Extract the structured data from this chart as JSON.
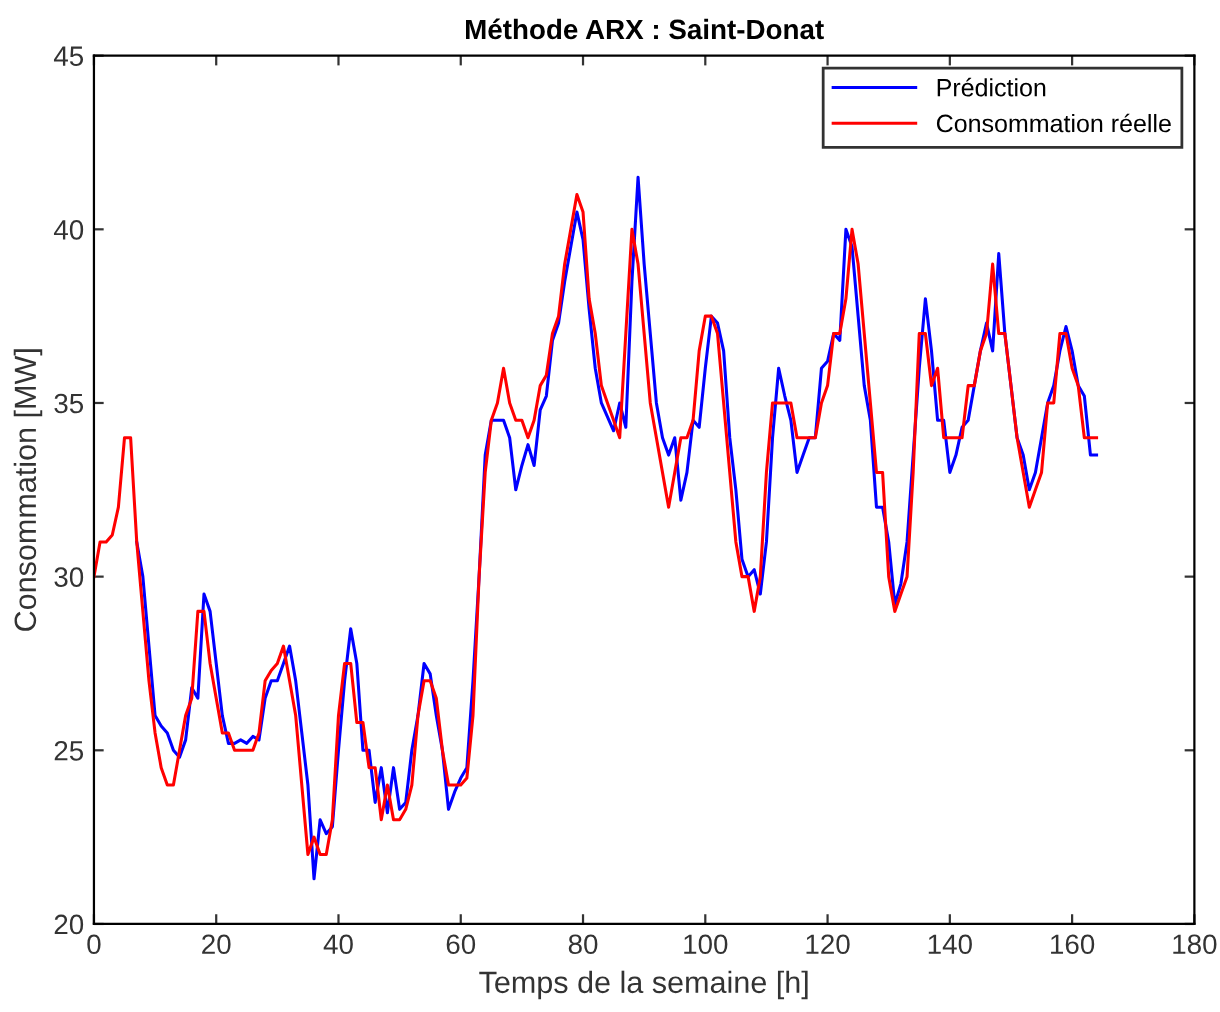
{
  "chart_data": {
    "type": "line",
    "title": "Méthode ARX : Saint-Donat",
    "xlabel": "Temps de la semaine [h]",
    "ylabel": "Consommation [MW]",
    "xlim": [
      0,
      180
    ],
    "xticks": [
      0,
      20,
      40,
      60,
      80,
      100,
      120,
      140,
      160,
      180
    ],
    "ylim": [
      20,
      45
    ],
    "yticks": [
      20,
      25,
      30,
      35,
      40,
      45
    ],
    "grid": false,
    "legend": "top right",
    "marker": "none",
    "line_style": "solid",
    "series": [
      {
        "name": "Prédiction",
        "color": "#0000ff",
        "x": [
          7,
          8,
          9,
          10,
          11,
          12,
          13,
          14,
          15,
          16,
          17,
          18,
          19,
          20,
          21,
          22,
          23,
          24,
          25,
          26,
          27,
          28,
          29,
          30,
          31,
          32,
          33,
          34,
          35,
          36,
          37,
          38,
          39,
          40,
          41,
          42,
          43,
          44,
          45,
          46,
          47,
          48,
          49,
          50,
          51,
          52,
          53,
          54,
          55,
          56,
          57,
          58,
          59,
          60,
          61,
          62,
          63,
          64,
          65,
          66,
          67,
          68,
          69,
          70,
          71,
          72,
          73,
          74,
          75,
          76,
          77,
          78,
          79,
          80,
          81,
          82,
          83,
          84,
          85,
          86,
          87,
          88,
          89,
          90,
          91,
          92,
          93,
          94,
          95,
          96,
          97,
          98,
          99,
          100,
          101,
          102,
          103,
          104,
          105,
          106,
          107,
          108,
          109,
          110,
          111,
          112,
          113,
          114,
          115,
          116,
          117,
          118,
          119,
          120,
          121,
          122,
          123,
          124,
          125,
          126,
          127,
          128,
          129,
          130,
          131,
          132,
          133,
          134,
          135,
          136,
          137,
          138,
          139,
          140,
          141,
          142,
          143,
          144,
          145,
          146,
          147,
          148,
          149,
          150,
          151,
          152,
          153,
          154,
          155,
          156,
          157,
          158,
          159,
          160,
          161,
          162,
          163,
          164
        ],
        "values": [
          31,
          30,
          28,
          26,
          25.7,
          25.5,
          25,
          24.8,
          25.3,
          26.8,
          26.5,
          29.5,
          29,
          27.5,
          26,
          25.2,
          25.2,
          25.3,
          25.2,
          25.4,
          25.3,
          26.5,
          27,
          27,
          27.5,
          28,
          27,
          25.5,
          24,
          21.3,
          23,
          22.6,
          22.8,
          25,
          27,
          28.5,
          27.5,
          25,
          25,
          23.5,
          24.5,
          23.2,
          24.5,
          23.3,
          23.5,
          25,
          26,
          27.5,
          27.2,
          26,
          25,
          23.3,
          23.8,
          24.2,
          24.5,
          27,
          30,
          33.5,
          34.5,
          34.5,
          34.5,
          34,
          32.5,
          33.2,
          33.8,
          33.2,
          34.8,
          35.2,
          36.8,
          37.3,
          38.5,
          39.5,
          40.5,
          39.7,
          37.7,
          36,
          35,
          34.6,
          34.2,
          35,
          34.3,
          38.5,
          41.5,
          39,
          37,
          35,
          34,
          33.5,
          34,
          32.2,
          33,
          34.5,
          34.3,
          36,
          37.5,
          37.3,
          36.5,
          34,
          32.5,
          30.5,
          30,
          30.2,
          29.5,
          31,
          34,
          36,
          35.2,
          34.5,
          33,
          33.5,
          34,
          34,
          36,
          36.2,
          37,
          36.8,
          40,
          39.5,
          37.5,
          35.5,
          34.5,
          32,
          32,
          31,
          29.2,
          29.8,
          31,
          33.5,
          36,
          38,
          36.5,
          34.5,
          34.5,
          33,
          33.5,
          34.3,
          34.5,
          35.5,
          36.5,
          37.3,
          36.5,
          39.3,
          37,
          35.5,
          34,
          33.5,
          32.5,
          33,
          34,
          35,
          35.5,
          36.5,
          37.2,
          36.5,
          35.5,
          35.2,
          33.5,
          33.5
        ]
      },
      {
        "name": "Consommation réelle",
        "color": "#ff0000",
        "x": [
          0,
          1,
          2,
          3,
          4,
          5,
          6,
          7,
          8,
          9,
          10,
          11,
          12,
          13,
          14,
          15,
          16,
          17,
          18,
          19,
          20,
          21,
          22,
          23,
          24,
          25,
          26,
          27,
          28,
          29,
          30,
          31,
          32,
          33,
          34,
          35,
          36,
          37,
          38,
          39,
          40,
          41,
          42,
          43,
          44,
          45,
          46,
          47,
          48,
          49,
          50,
          51,
          52,
          53,
          54,
          55,
          56,
          57,
          58,
          59,
          60,
          61,
          62,
          63,
          64,
          65,
          66,
          67,
          68,
          69,
          70,
          71,
          72,
          73,
          74,
          75,
          76,
          77,
          78,
          79,
          80,
          81,
          82,
          83,
          84,
          85,
          86,
          87,
          88,
          89,
          90,
          91,
          92,
          93,
          94,
          95,
          96,
          97,
          98,
          99,
          100,
          101,
          102,
          103,
          104,
          105,
          106,
          107,
          108,
          109,
          110,
          111,
          112,
          113,
          114,
          115,
          116,
          117,
          118,
          119,
          120,
          121,
          122,
          123,
          124,
          125,
          126,
          127,
          128,
          129,
          130,
          131,
          132,
          133,
          134,
          135,
          136,
          137,
          138,
          139,
          140,
          141,
          142,
          143,
          144,
          145,
          146,
          147,
          148,
          149,
          150,
          151,
          152,
          153,
          154,
          155,
          156,
          157,
          158,
          159,
          160,
          161,
          162,
          163,
          164
        ],
        "values": [
          30,
          31,
          31,
          31.2,
          32,
          34,
          34,
          31,
          29,
          27,
          25.5,
          24.5,
          24,
          24,
          25,
          26,
          26.5,
          29,
          29,
          27.5,
          26.5,
          25.5,
          25.5,
          25,
          25,
          25,
          25,
          25.5,
          27,
          27.3,
          27.5,
          28,
          27,
          26,
          24,
          22,
          22.5,
          22,
          22,
          23,
          26,
          27.5,
          27.5,
          25.8,
          25.8,
          24.5,
          24.5,
          23,
          24,
          23,
          23,
          23.3,
          24,
          26,
          27,
          27,
          26.5,
          25,
          24,
          24,
          24,
          24.2,
          26,
          30,
          33,
          34.5,
          35,
          36,
          35,
          34.5,
          34.5,
          34,
          34.5,
          35.5,
          35.8,
          37,
          37.5,
          39,
          40,
          41,
          40.5,
          38,
          37,
          35.5,
          35,
          34.5,
          34,
          37,
          40,
          39,
          37,
          35,
          34,
          33,
          32,
          33,
          34,
          34,
          34.5,
          36.5,
          37.5,
          37.5,
          37,
          35,
          33,
          31,
          30,
          30,
          29,
          30,
          33,
          35,
          35,
          35,
          35,
          34,
          34,
          34,
          34,
          35,
          35.5,
          37,
          37,
          38,
          40,
          39,
          37,
          35,
          33,
          33,
          30,
          29,
          29.5,
          30,
          33,
          37,
          37,
          35.5,
          36,
          34,
          34,
          34,
          34,
          35.5,
          35.5,
          36.5,
          37,
          39,
          37,
          37,
          35.5,
          34,
          33,
          32,
          32.5,
          33,
          35,
          35,
          37,
          37,
          36,
          35.5,
          34,
          34,
          34
        ]
      }
    ]
  }
}
